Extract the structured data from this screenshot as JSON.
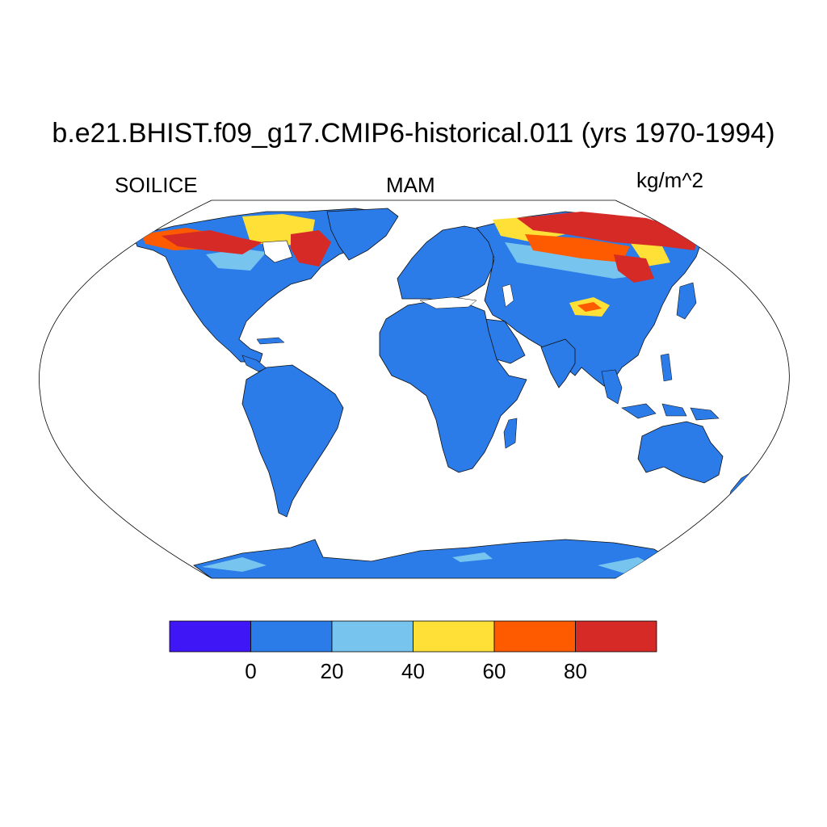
{
  "title": "b.e21.BHIST.f09_g17.CMIP6-historical.011 (yrs 1970-1994)",
  "variable": "SOILICE",
  "season": "MAM",
  "units": "kg/m^2",
  "colorbar": {
    "colors": [
      "#3f16f5",
      "#2b7be8",
      "#77c4ee",
      "#fee037",
      "#fe5a00",
      "#d62a27"
    ],
    "tick_labels": [
      "0",
      "20",
      "40",
      "60",
      "80"
    ]
  },
  "map_colors": {
    "land_default": "#2b7be8",
    "ocean": "#ffffff",
    "coastline": "#000000"
  }
}
